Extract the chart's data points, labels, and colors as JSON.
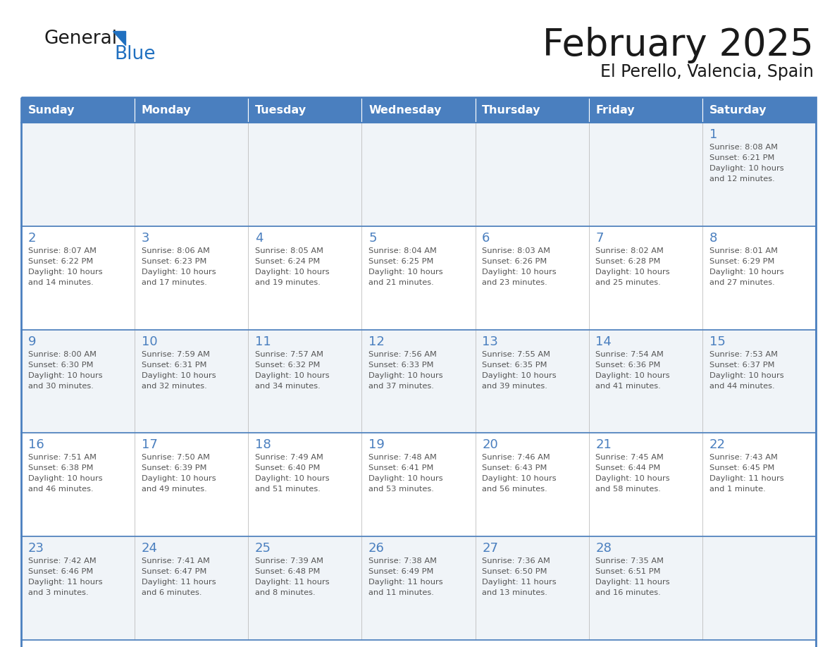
{
  "title": "February 2025",
  "subtitle": "El Perello, Valencia, Spain",
  "header_color": "#4a7fbf",
  "header_text_color": "#FFFFFF",
  "background_color": "#FFFFFF",
  "cell_bg_light": "#f0f4f8",
  "cell_bg_white": "#FFFFFF",
  "border_color": "#4a7fbf",
  "day_headers": [
    "Sunday",
    "Monday",
    "Tuesday",
    "Wednesday",
    "Thursday",
    "Friday",
    "Saturday"
  ],
  "title_color": "#1a1a1a",
  "subtitle_color": "#1a1a1a",
  "day_num_color": "#4a7fbf",
  "cell_text_color": "#555555",
  "logo_color1": "#1a1a1a",
  "logo_color2": "#2070C0",
  "logo_triangle_color": "#2070C0",
  "calendar_data": [
    [
      null,
      null,
      null,
      null,
      null,
      null,
      {
        "day": 1,
        "sunrise": "8:08 AM",
        "sunset": "6:21 PM",
        "daylight": "10 hours\nand 12 minutes."
      }
    ],
    [
      {
        "day": 2,
        "sunrise": "8:07 AM",
        "sunset": "6:22 PM",
        "daylight": "10 hours\nand 14 minutes."
      },
      {
        "day": 3,
        "sunrise": "8:06 AM",
        "sunset": "6:23 PM",
        "daylight": "10 hours\nand 17 minutes."
      },
      {
        "day": 4,
        "sunrise": "8:05 AM",
        "sunset": "6:24 PM",
        "daylight": "10 hours\nand 19 minutes."
      },
      {
        "day": 5,
        "sunrise": "8:04 AM",
        "sunset": "6:25 PM",
        "daylight": "10 hours\nand 21 minutes."
      },
      {
        "day": 6,
        "sunrise": "8:03 AM",
        "sunset": "6:26 PM",
        "daylight": "10 hours\nand 23 minutes."
      },
      {
        "day": 7,
        "sunrise": "8:02 AM",
        "sunset": "6:28 PM",
        "daylight": "10 hours\nand 25 minutes."
      },
      {
        "day": 8,
        "sunrise": "8:01 AM",
        "sunset": "6:29 PM",
        "daylight": "10 hours\nand 27 minutes."
      }
    ],
    [
      {
        "day": 9,
        "sunrise": "8:00 AM",
        "sunset": "6:30 PM",
        "daylight": "10 hours\nand 30 minutes."
      },
      {
        "day": 10,
        "sunrise": "7:59 AM",
        "sunset": "6:31 PM",
        "daylight": "10 hours\nand 32 minutes."
      },
      {
        "day": 11,
        "sunrise": "7:57 AM",
        "sunset": "6:32 PM",
        "daylight": "10 hours\nand 34 minutes."
      },
      {
        "day": 12,
        "sunrise": "7:56 AM",
        "sunset": "6:33 PM",
        "daylight": "10 hours\nand 37 minutes."
      },
      {
        "day": 13,
        "sunrise": "7:55 AM",
        "sunset": "6:35 PM",
        "daylight": "10 hours\nand 39 minutes."
      },
      {
        "day": 14,
        "sunrise": "7:54 AM",
        "sunset": "6:36 PM",
        "daylight": "10 hours\nand 41 minutes."
      },
      {
        "day": 15,
        "sunrise": "7:53 AM",
        "sunset": "6:37 PM",
        "daylight": "10 hours\nand 44 minutes."
      }
    ],
    [
      {
        "day": 16,
        "sunrise": "7:51 AM",
        "sunset": "6:38 PM",
        "daylight": "10 hours\nand 46 minutes."
      },
      {
        "day": 17,
        "sunrise": "7:50 AM",
        "sunset": "6:39 PM",
        "daylight": "10 hours\nand 49 minutes."
      },
      {
        "day": 18,
        "sunrise": "7:49 AM",
        "sunset": "6:40 PM",
        "daylight": "10 hours\nand 51 minutes."
      },
      {
        "day": 19,
        "sunrise": "7:48 AM",
        "sunset": "6:41 PM",
        "daylight": "10 hours\nand 53 minutes."
      },
      {
        "day": 20,
        "sunrise": "7:46 AM",
        "sunset": "6:43 PM",
        "daylight": "10 hours\nand 56 minutes."
      },
      {
        "day": 21,
        "sunrise": "7:45 AM",
        "sunset": "6:44 PM",
        "daylight": "10 hours\nand 58 minutes."
      },
      {
        "day": 22,
        "sunrise": "7:43 AM",
        "sunset": "6:45 PM",
        "daylight": "11 hours\nand 1 minute."
      }
    ],
    [
      {
        "day": 23,
        "sunrise": "7:42 AM",
        "sunset": "6:46 PM",
        "daylight": "11 hours\nand 3 minutes."
      },
      {
        "day": 24,
        "sunrise": "7:41 AM",
        "sunset": "6:47 PM",
        "daylight": "11 hours\nand 6 minutes."
      },
      {
        "day": 25,
        "sunrise": "7:39 AM",
        "sunset": "6:48 PM",
        "daylight": "11 hours\nand 8 minutes."
      },
      {
        "day": 26,
        "sunrise": "7:38 AM",
        "sunset": "6:49 PM",
        "daylight": "11 hours\nand 11 minutes."
      },
      {
        "day": 27,
        "sunrise": "7:36 AM",
        "sunset": "6:50 PM",
        "daylight": "11 hours\nand 13 minutes."
      },
      {
        "day": 28,
        "sunrise": "7:35 AM",
        "sunset": "6:51 PM",
        "daylight": "11 hours\nand 16 minutes."
      },
      null
    ]
  ]
}
